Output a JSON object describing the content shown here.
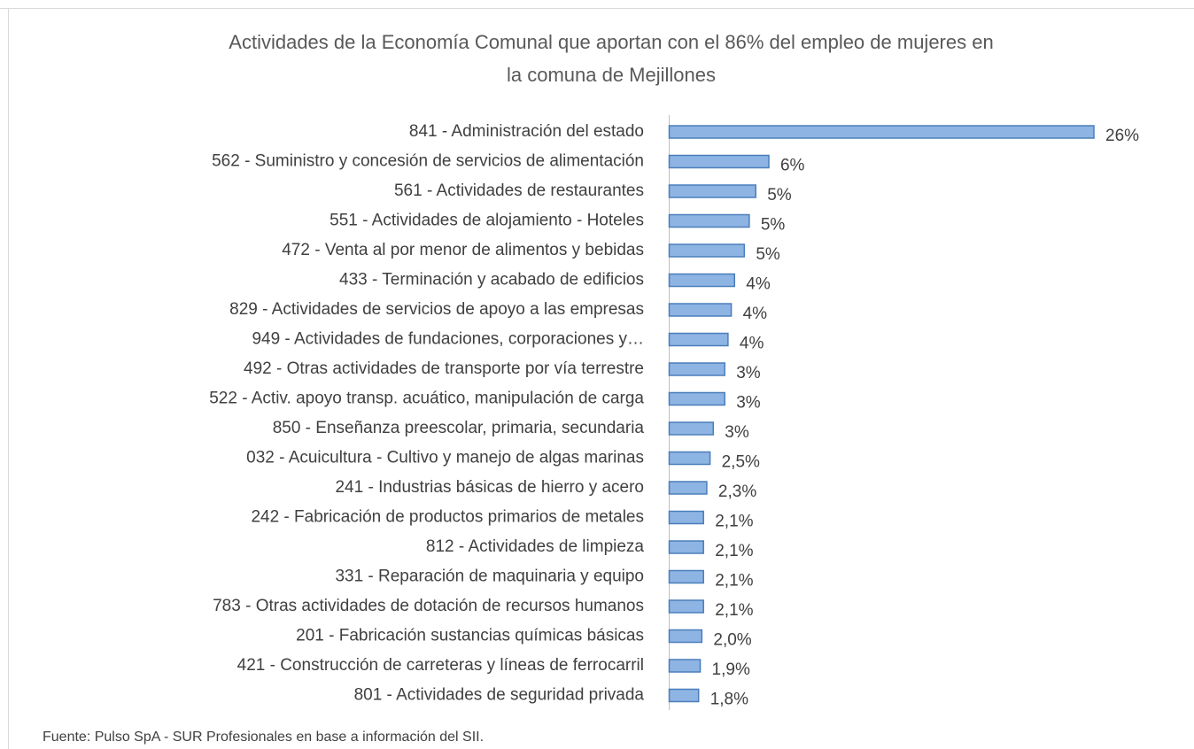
{
  "chart_data": {
    "type": "barh",
    "title_lines": [
      "Actividades de la Economía Comunal que aportan con el 86% del empleo de mujeres en",
      "la comuna de Mejillones"
    ],
    "categories": [
      "841 - Administración del estado",
      "562 - Suministro y concesión de servicios de alimentación",
      "561 - Actividades de restaurantes",
      "551 - Actividades de alojamiento - Hoteles",
      "472 - Venta al por menor de alimentos y bebidas",
      "433 - Terminación y acabado de edificios",
      "829 - Actividades de servicios de apoyo a las empresas",
      "949 - Actividades de fundaciones, corporaciones y…",
      "492 - Otras actividades de transporte por vía terrestre",
      "522 - Activ. apoyo transp. acuático, manipulación de carga",
      "850 - Enseñanza preescolar, primaria, secundaria",
      "032 - Acuicultura - Cultivo y manejo de algas marinas",
      "241 - Industrias básicas de hierro y acero",
      "242 - Fabricación de productos primarios de metales",
      "812 - Actividades de limpieza",
      "331 - Reparación de maquinaria y equipo",
      "783 - Otras actividades de dotación de recursos humanos",
      "201 - Fabricación sustancias químicas básicas",
      "421 - Construcción de carreteras y líneas de ferrocarril",
      "801 - Actividades de seguridad privada"
    ],
    "values": [
      26,
      6.1,
      5.3,
      4.9,
      4.6,
      4.0,
      3.8,
      3.6,
      3.4,
      3.4,
      2.7,
      2.5,
      2.3,
      2.1,
      2.1,
      2.1,
      2.1,
      2.0,
      1.9,
      1.8
    ],
    "value_labels": [
      "26%",
      "6%",
      "5%",
      "5%",
      "5%",
      "4%",
      "4%",
      "4%",
      "3%",
      "3%",
      "3%",
      "2,5%",
      "2,3%",
      "2,1%",
      "2,1%",
      "2,1%",
      "2,1%",
      "2,0%",
      "1,9%",
      "1,8%"
    ],
    "color": "#8eb4e3",
    "edge_color": "#4a7ebb",
    "source": "Fuente: Pulso SpA - SUR Profesionales en base a información del SII."
  }
}
